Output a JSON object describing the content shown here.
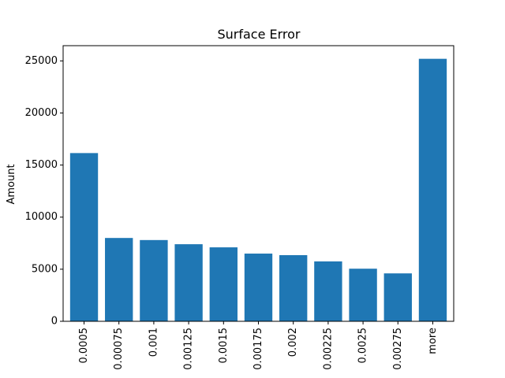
{
  "chart_data": {
    "type": "bar",
    "title": "Surface Error",
    "xlabel": "",
    "ylabel": "Amount",
    "categories": [
      "0.0005",
      "0.00075",
      "0.001",
      "0.00125",
      "0.0015",
      "0.00175",
      "0.002",
      "0.00225",
      "0.0025",
      "0.00275",
      "more"
    ],
    "values": [
      16150,
      8000,
      7800,
      7400,
      7100,
      6500,
      6350,
      5750,
      5050,
      4600,
      25200
    ],
    "ylim": [
      0,
      26460
    ],
    "yticks": [
      0,
      5000,
      10000,
      15000,
      20000,
      25000
    ],
    "bar_color": "#1f77b4",
    "grid": false,
    "legend": "none"
  }
}
